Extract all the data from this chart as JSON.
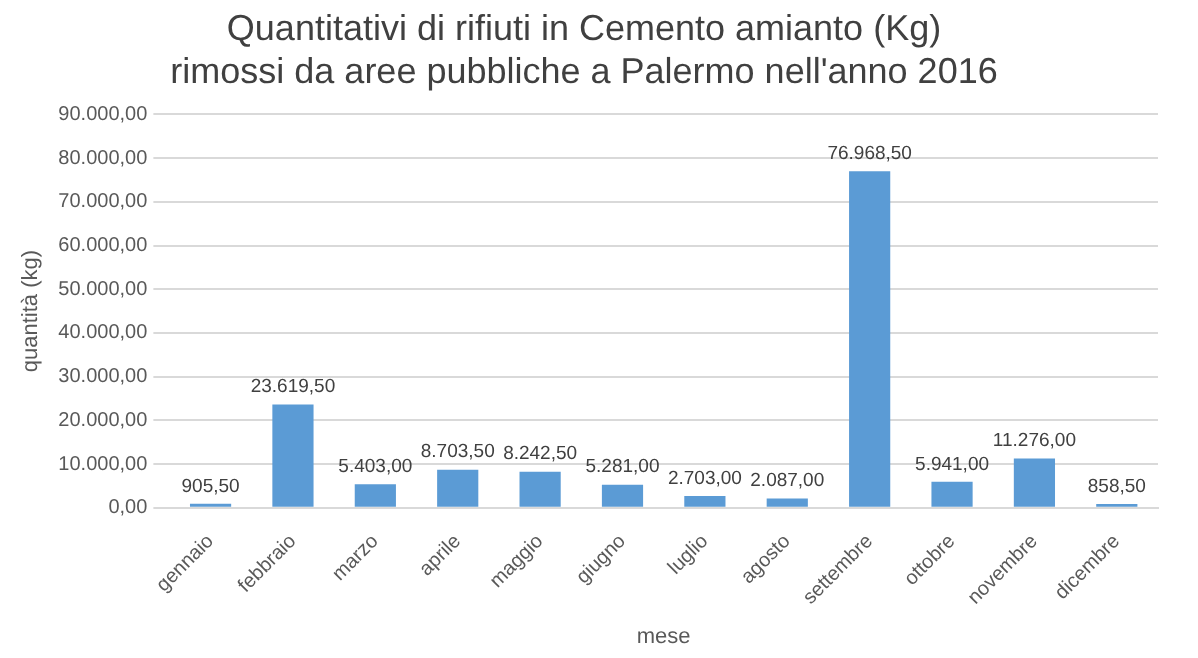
{
  "chart_data": {
    "type": "bar",
    "title": [
      "Quantitativi di rifiuti in Cemento amianto (Kg)",
      "rimossi da aree pubbliche a Palermo nell'anno 2016"
    ],
    "xlabel": "mese",
    "ylabel": "quantità (kg)",
    "categories": [
      "gennaio",
      "febbraio",
      "marzo",
      "aprile",
      "maggio",
      "giugno",
      "luglio",
      "agosto",
      "settembre",
      "ottobre",
      "novembre",
      "dicembre"
    ],
    "values": [
      905.5,
      23619.5,
      5403,
      8703.5,
      8242.5,
      5281,
      2703,
      2087,
      76968.5,
      5941,
      11276,
      858.5
    ],
    "value_labels": [
      "905,50",
      "23.619,50",
      "5.403,00",
      "8.703,50",
      "8.242,50",
      "5.281,00",
      "2.703,00",
      "2.087,00",
      "76.968,50",
      "5.941,00",
      "11.276,00",
      "858,50"
    ],
    "color": "#5b9bd5",
    "ylim": [
      0,
      90000
    ],
    "yticks": [
      {
        "value": 0,
        "label": "0,00"
      },
      {
        "value": 10000,
        "label": "10.000,00"
      },
      {
        "value": 20000,
        "label": "20.000,00"
      },
      {
        "value": 30000,
        "label": "30.000,00"
      },
      {
        "value": 40000,
        "label": "40.000,00"
      },
      {
        "value": 50000,
        "label": "50.000,00"
      },
      {
        "value": 60000,
        "label": "60.000,00"
      },
      {
        "value": 70000,
        "label": "70.000,00"
      },
      {
        "value": 80000,
        "label": "80.000,00"
      },
      {
        "value": 90000,
        "label": "90.000,00"
      }
    ],
    "grid": "y",
    "legend": false
  }
}
